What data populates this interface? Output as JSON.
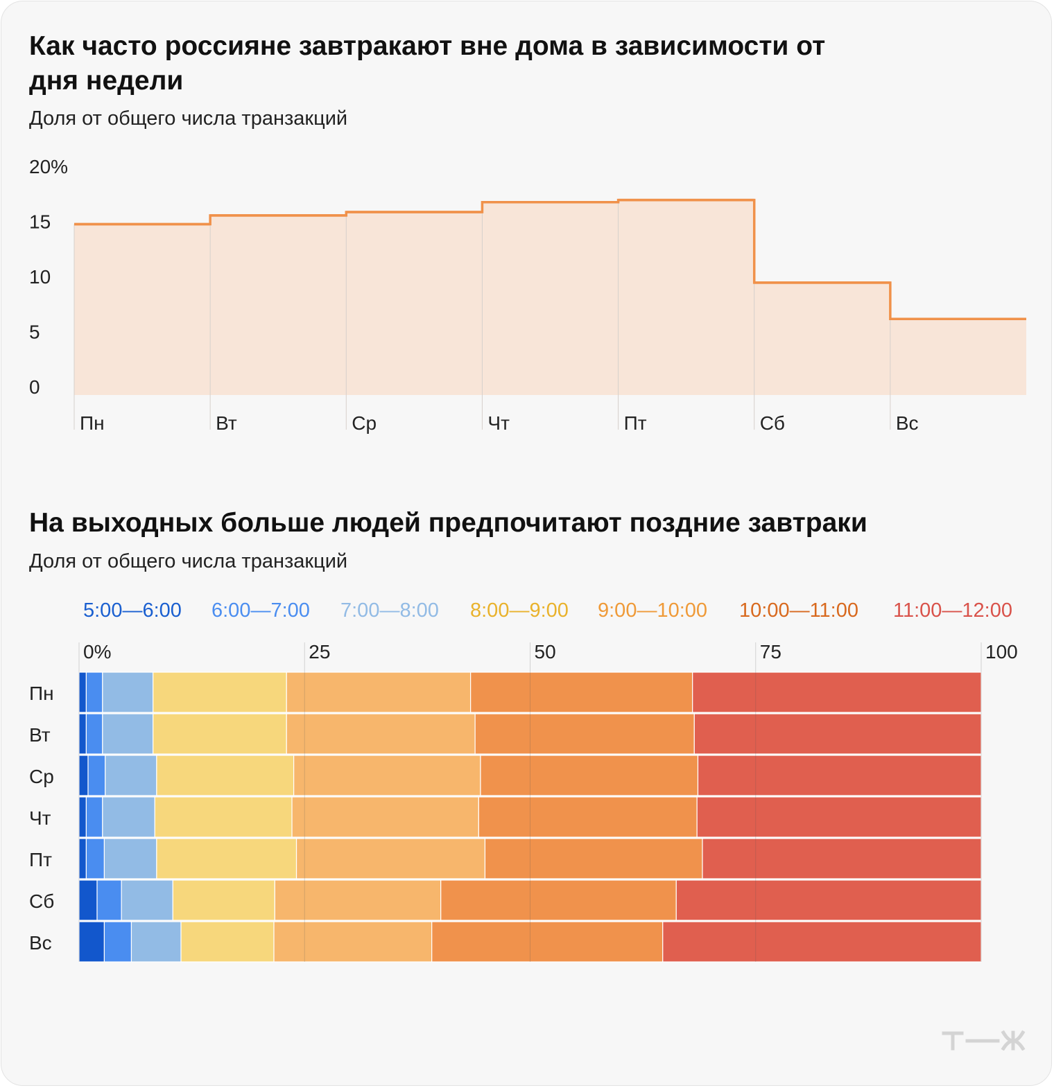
{
  "chart_data": [
    {
      "type": "area",
      "title": "Как часто россияне завтракают вне дома в зависимости от дня недели",
      "subtitle": "Доля от общего числа транзакций",
      "categories": [
        "Пн",
        "Вт",
        "Ср",
        "Чт",
        "Пт",
        "Сб",
        "Вс"
      ],
      "values": [
        15.5,
        16.3,
        16.6,
        17.5,
        17.7,
        10.2,
        6.9
      ],
      "y_ticks": [
        "20%",
        "15",
        "10",
        "5",
        "0"
      ],
      "ylim": [
        0,
        20
      ],
      "step": true,
      "color": "#f0914a",
      "fill": "#f8e5d8"
    },
    {
      "type": "bar",
      "orientation": "horizontal",
      "stacked": true,
      "title": "На выходных больше людей предпочитают поздние завтраки",
      "subtitle": "Доля от общего числа транзакций",
      "categories": [
        "Пн",
        "Вт",
        "Ср",
        "Чт",
        "Пт",
        "Сб",
        "Вс"
      ],
      "x_ticks": [
        "0%",
        "25",
        "50",
        "75",
        "100"
      ],
      "xlim": [
        0,
        100
      ],
      "legend_position": "top",
      "series": [
        {
          "name": "5:00—6:00",
          "color": "#1257cc",
          "legend_color": "#1a5fd0",
          "values": [
            0.8,
            0.8,
            1.0,
            0.8,
            0.8,
            2.0,
            2.8
          ]
        },
        {
          "name": "6:00—7:00",
          "color": "#4a8df0",
          "legend_color": "#4a8df0",
          "values": [
            1.8,
            1.8,
            1.9,
            1.8,
            2.0,
            2.7,
            3.0
          ]
        },
        {
          "name": "7:00—8:00",
          "color": "#92bbe5",
          "legend_color": "#92bbe5",
          "values": [
            5.6,
            5.6,
            5.7,
            5.8,
            5.8,
            5.7,
            5.5
          ]
        },
        {
          "name": "8:00—9:00",
          "color": "#f7d77c",
          "legend_color": "#e9b22c",
          "values": [
            14.8,
            14.8,
            15.2,
            15.2,
            15.5,
            11.3,
            10.3
          ]
        },
        {
          "name": "9:00—10:00",
          "color": "#f7b66c",
          "legend_color": "#ef9a38",
          "values": [
            20.4,
            20.9,
            20.7,
            20.7,
            20.9,
            18.4,
            17.5
          ]
        },
        {
          "name": "10:00—11:00",
          "color": "#f0924c",
          "legend_color": "#d8691e",
          "values": [
            24.6,
            24.3,
            24.1,
            24.2,
            24.1,
            26.1,
            25.6
          ]
        },
        {
          "name": "11:00—12:00",
          "color": "#e05f4f",
          "legend_color": "#d9524a",
          "values": [
            32.0,
            31.8,
            31.4,
            31.5,
            30.9,
            33.8,
            35.3
          ]
        }
      ]
    }
  ],
  "logo_alt": "т—ж"
}
